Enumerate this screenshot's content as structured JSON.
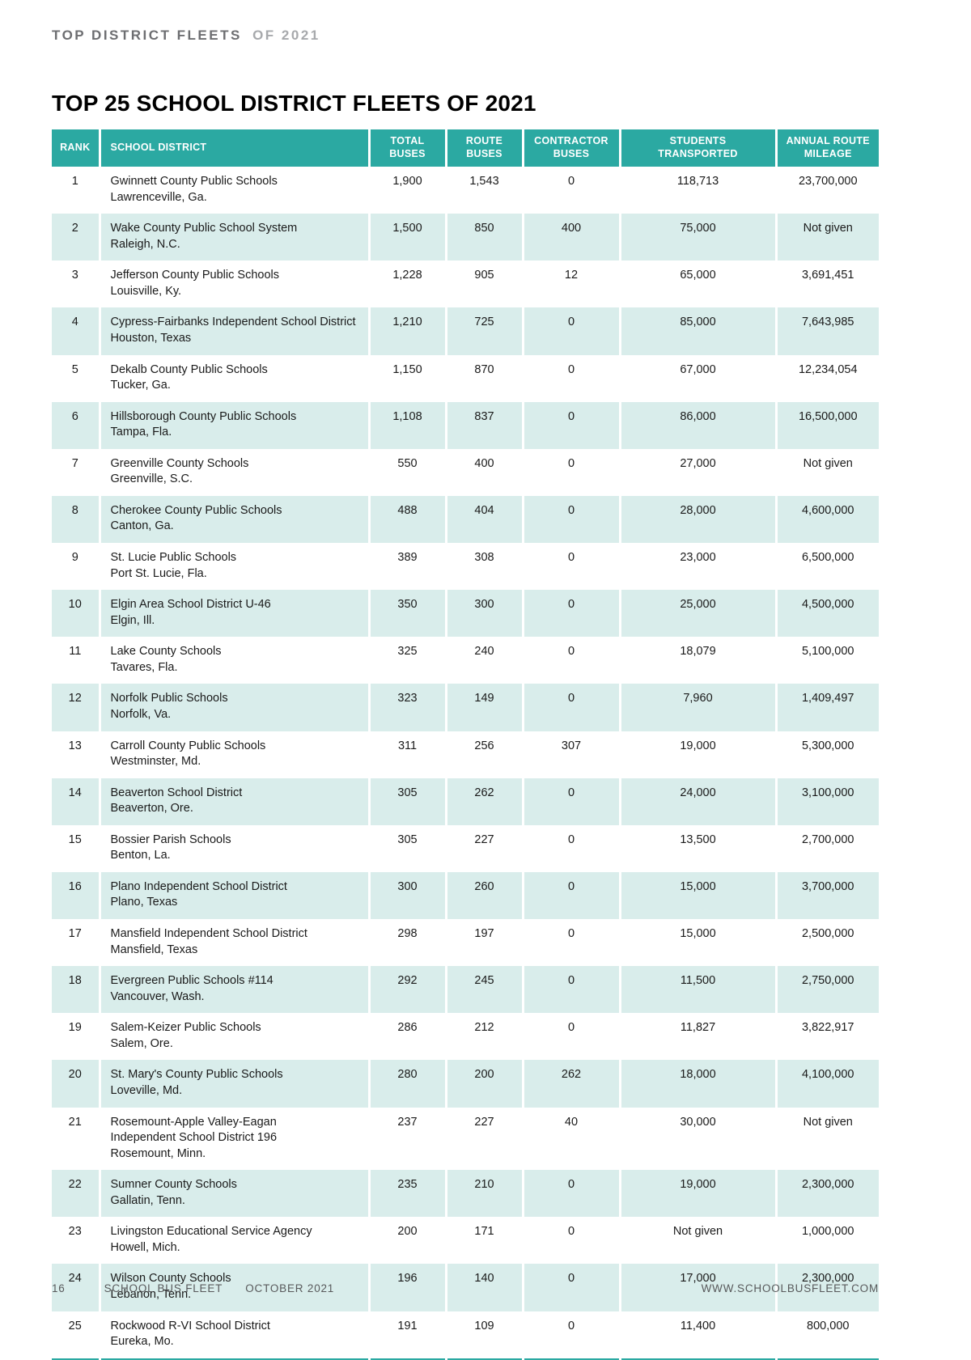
{
  "colors": {
    "teal": "#2ba9a2",
    "rowShade": "#d9edeb",
    "eyebrowDark": "#6d6e71",
    "eyebrowLight": "#a7a9ac",
    "footerGray": "#58595b"
  },
  "page": {
    "eyebrow_bold": "TOP DISTRICT FLEETS",
    "eyebrow_light": "OF 2021",
    "title": "TOP 25 SCHOOL DISTRICT FLEETS OF 2021",
    "footer": {
      "page_number": "16",
      "magazine": "SCHOOL BUS FLEET",
      "issue": "OCTOBER 2021",
      "website": "WWW.SCHOOLBUSFLEET.COM"
    }
  },
  "table": {
    "columns": [
      "RANK",
      "SCHOOL DISTRICT",
      "TOTAL\nBUSES",
      "ROUTE\nBUSES",
      "CONTRACTOR\nBUSES",
      "STUDENTS\nTRANSPORTED",
      "ANNUAL ROUTE\nMILEAGE"
    ],
    "rows": [
      {
        "rank": "1",
        "name": "Gwinnett County Public Schools",
        "location": "Lawrenceville, Ga.",
        "total": "1,900",
        "route": "1,543",
        "contractor": "0",
        "students": "118,713",
        "mileage": "23,700,000"
      },
      {
        "rank": "2",
        "name": "Wake County Public School System",
        "location": "Raleigh, N.C.",
        "total": "1,500",
        "route": "850",
        "contractor": "400",
        "students": "75,000",
        "mileage": "Not given"
      },
      {
        "rank": "3",
        "name": "Jefferson County Public Schools",
        "location": "Louisville, Ky.",
        "total": "1,228",
        "route": "905",
        "contractor": "12",
        "students": "65,000",
        "mileage": "3,691,451"
      },
      {
        "rank": "4",
        "name": "Cypress-Fairbanks Independent School District",
        "location": "Houston, Texas",
        "total": "1,210",
        "route": "725",
        "contractor": "0",
        "students": "85,000",
        "mileage": "7,643,985"
      },
      {
        "rank": "5",
        "name": "Dekalb County Public Schools",
        "location": "Tucker, Ga.",
        "total": "1,150",
        "route": "870",
        "contractor": "0",
        "students": "67,000",
        "mileage": "12,234,054"
      },
      {
        "rank": "6",
        "name": "Hillsborough County Public Schools",
        "location": "Tampa, Fla.",
        "total": "1,108",
        "route": "837",
        "contractor": "0",
        "students": "86,000",
        "mileage": "16,500,000"
      },
      {
        "rank": "7",
        "name": "Greenville County Schools",
        "location": "Greenville, S.C.",
        "total": "550",
        "route": "400",
        "contractor": "0",
        "students": "27,000",
        "mileage": "Not given"
      },
      {
        "rank": "8",
        "name": "Cherokee County Public Schools",
        "location": "Canton, Ga.",
        "total": "488",
        "route": "404",
        "contractor": "0",
        "students": "28,000",
        "mileage": "4,600,000"
      },
      {
        "rank": "9",
        "name": "St. Lucie Public Schools",
        "location": "Port St. Lucie, Fla.",
        "total": "389",
        "route": "308",
        "contractor": "0",
        "students": "23,000",
        "mileage": "6,500,000"
      },
      {
        "rank": "10",
        "name": "Elgin Area School District U-46",
        "location": "Elgin, Ill.",
        "total": "350",
        "route": "300",
        "contractor": "0",
        "students": "25,000",
        "mileage": "4,500,000"
      },
      {
        "rank": "11",
        "name": "Lake County Schools",
        "location": "Tavares, Fla.",
        "total": "325",
        "route": "240",
        "contractor": "0",
        "students": "18,079",
        "mileage": "5,100,000"
      },
      {
        "rank": "12",
        "name": "Norfolk Public Schools",
        "location": "Norfolk, Va.",
        "total": "323",
        "route": "149",
        "contractor": "0",
        "students": "7,960",
        "mileage": "1,409,497"
      },
      {
        "rank": "13",
        "name": "Carroll County Public Schools",
        "location": "Westminster, Md.",
        "total": "311",
        "route": "256",
        "contractor": "307",
        "students": "19,000",
        "mileage": "5,300,000"
      },
      {
        "rank": "14",
        "name": "Beaverton School District",
        "location": "Beaverton, Ore.",
        "total": "305",
        "route": "262",
        "contractor": "0",
        "students": "24,000",
        "mileage": "3,100,000"
      },
      {
        "rank": "15",
        "name": "Bossier Parish Schools",
        "location": "Benton, La.",
        "total": "305",
        "route": "227",
        "contractor": "0",
        "students": "13,500",
        "mileage": "2,700,000"
      },
      {
        "rank": "16",
        "name": "Plano Independent School District",
        "location": "Plano, Texas",
        "total": "300",
        "route": "260",
        "contractor": "0",
        "students": "15,000",
        "mileage": "3,700,000"
      },
      {
        "rank": "17",
        "name": "Mansfield Independent School District",
        "location": "Mansfield, Texas",
        "total": "298",
        "route": "197",
        "contractor": "0",
        "students": "15,000",
        "mileage": "2,500,000"
      },
      {
        "rank": "18",
        "name": "Evergreen Public Schools #114",
        "location": "Vancouver, Wash.",
        "total": "292",
        "route": "245",
        "contractor": "0",
        "students": "11,500",
        "mileage": "2,750,000"
      },
      {
        "rank": "19",
        "name": "Salem-Keizer Public Schools",
        "location": "Salem, Ore.",
        "total": "286",
        "route": "212",
        "contractor": "0",
        "students": "11,827",
        "mileage": "3,822,917"
      },
      {
        "rank": "20",
        "name": "St. Mary's County Public Schools",
        "location": "Loveville, Md.",
        "total": "280",
        "route": "200",
        "contractor": "262",
        "students": "18,000",
        "mileage": "4,100,000"
      },
      {
        "rank": "21",
        "name": "Rosemount-Apple Valley-Eagan\nIndependent School District 196",
        "location": "Rosemount, Minn.",
        "total": "237",
        "route": "227",
        "contractor": "40",
        "students": "30,000",
        "mileage": "Not given"
      },
      {
        "rank": "22",
        "name": "Sumner County Schools",
        "location": "Gallatin, Tenn.",
        "total": "235",
        "route": "210",
        "contractor": "0",
        "students": "19,000",
        "mileage": "2,300,000"
      },
      {
        "rank": "23",
        "name": "Livingston Educational Service Agency",
        "location": "Howell, Mich.",
        "total": "200",
        "route": "171",
        "contractor": "0",
        "students": "Not given",
        "mileage": "1,000,000"
      },
      {
        "rank": "24",
        "name": "Wilson County Schools",
        "location": "Lebanon, Tenn.",
        "total": "196",
        "route": "140",
        "contractor": "0",
        "students": "17,000",
        "mileage": "2,300,000"
      },
      {
        "rank": "25",
        "name": "Rockwood R-VI School District",
        "location": "Eureka, Mo.",
        "total": "191",
        "route": "109",
        "contractor": "0",
        "students": "11,400",
        "mileage": "800,000"
      }
    ]
  }
}
